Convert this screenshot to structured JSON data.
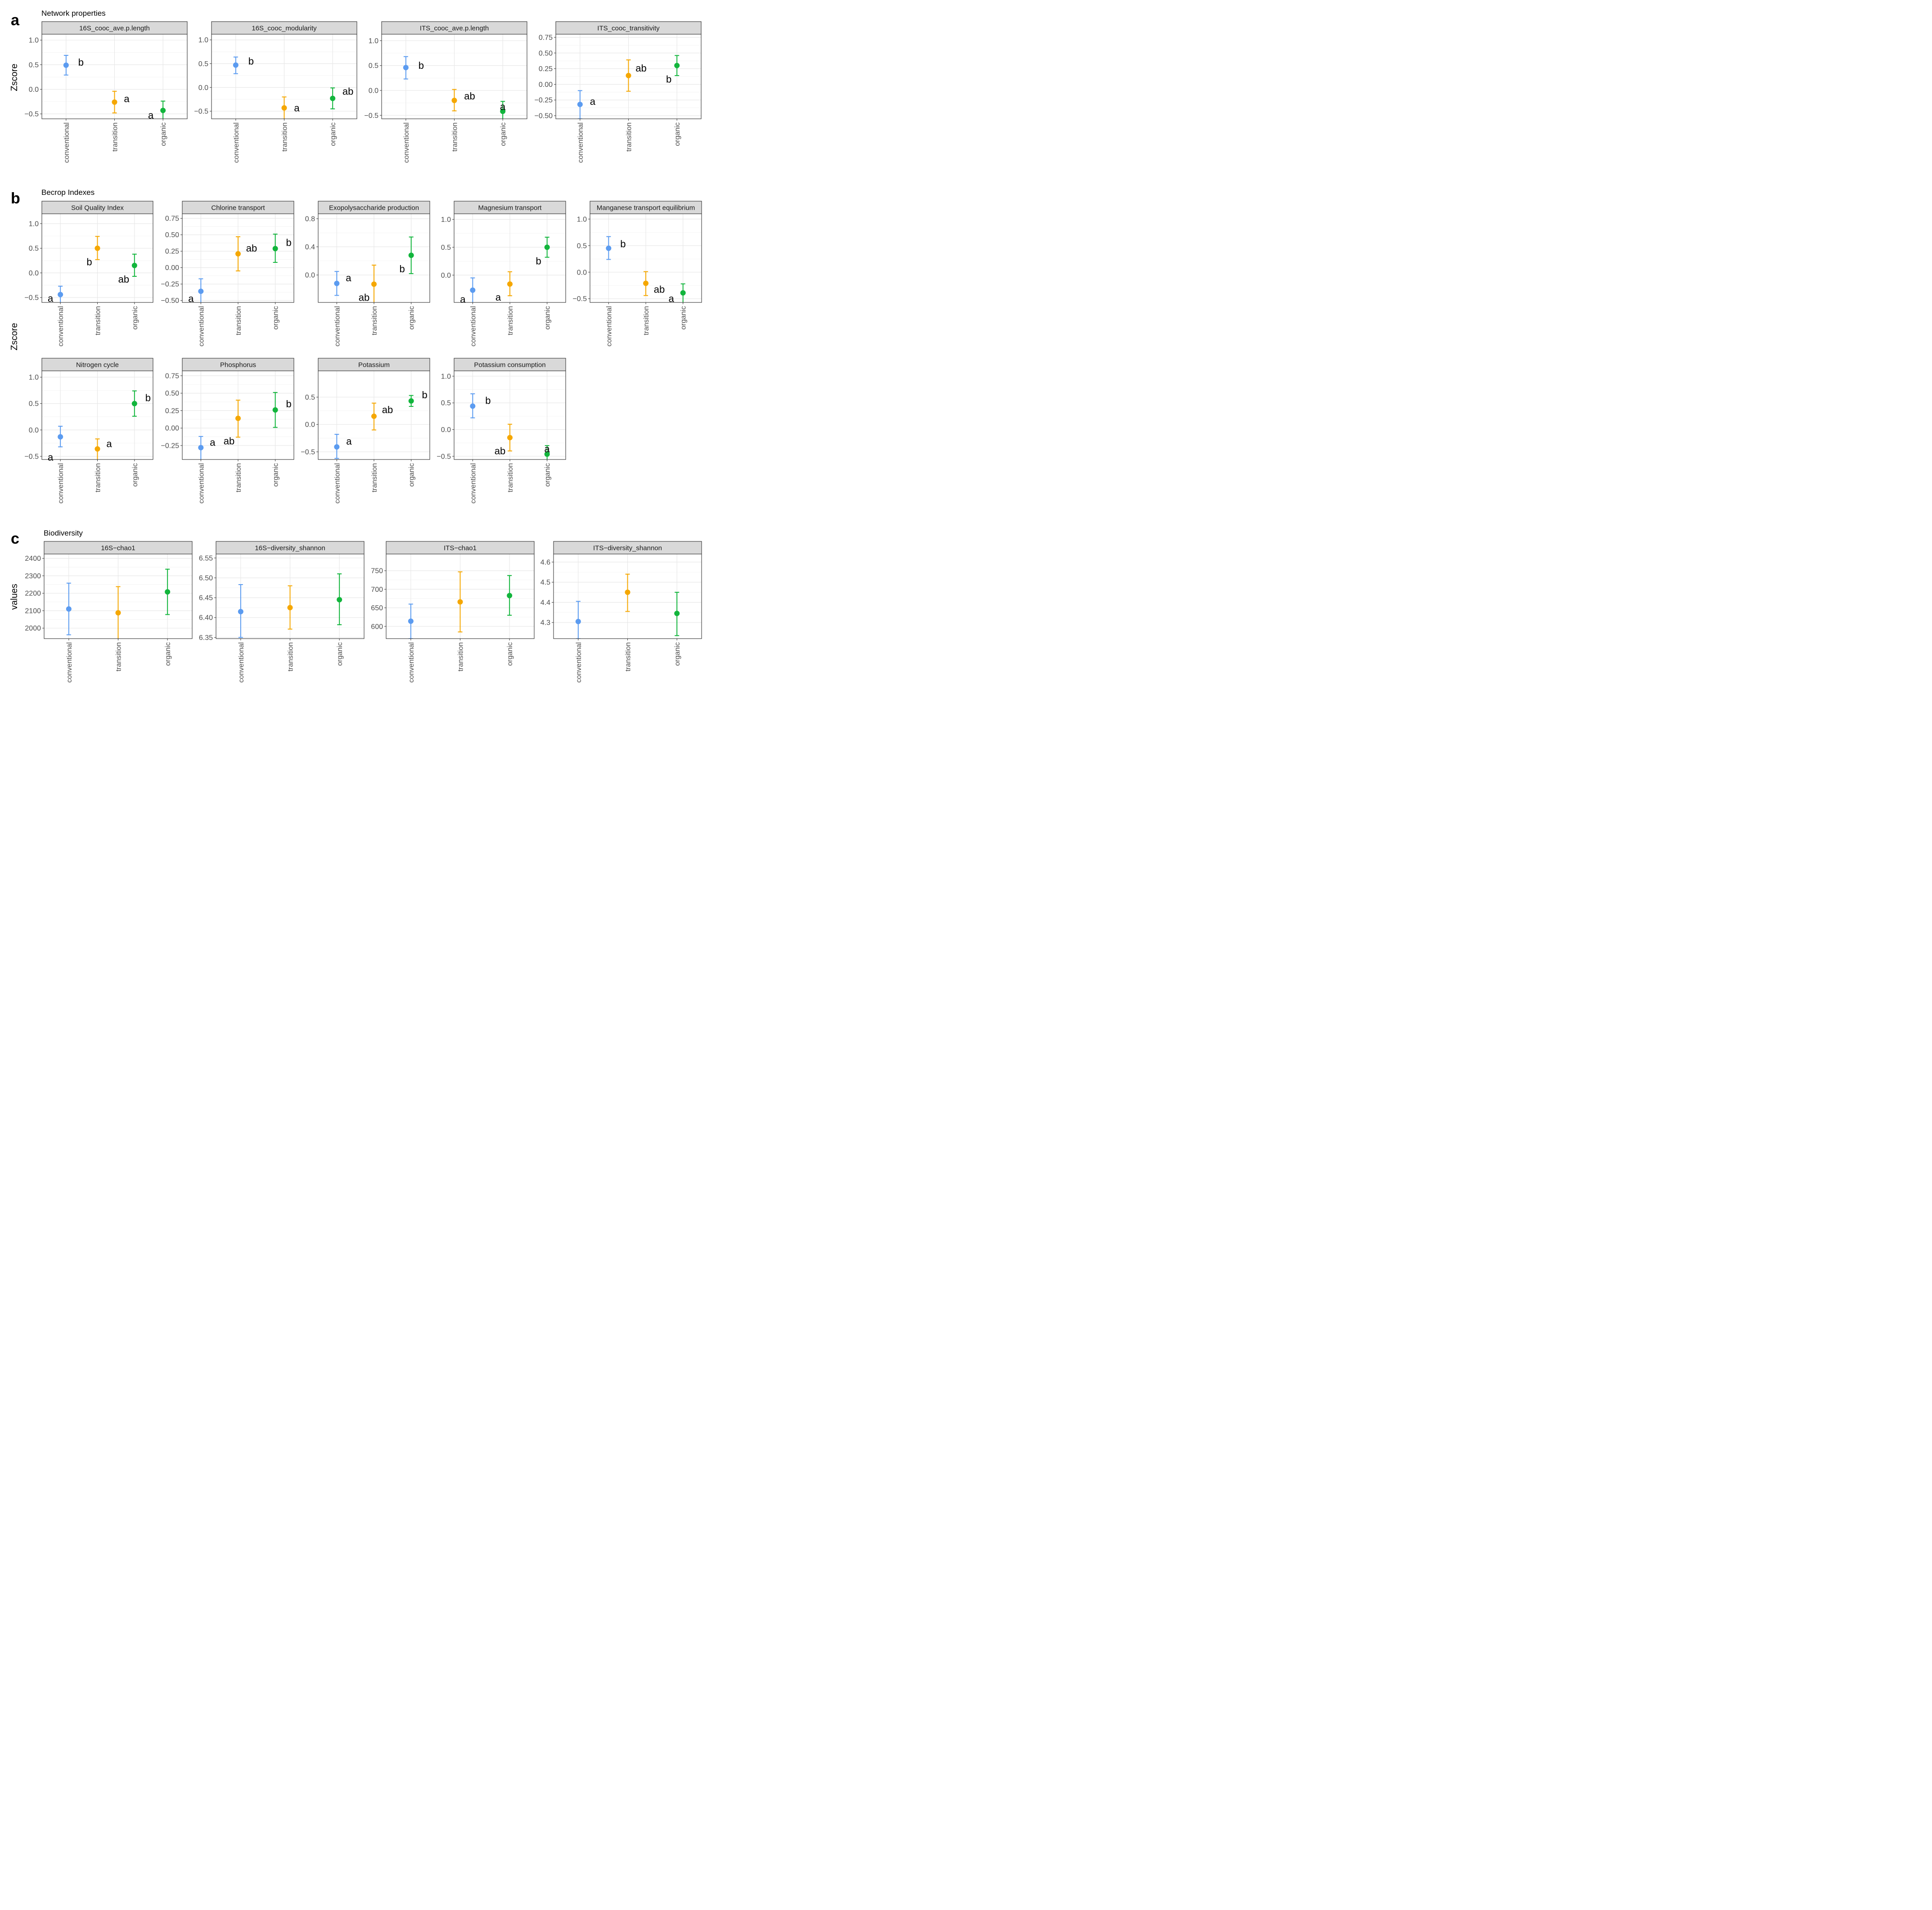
{
  "figure": {
    "colors": {
      "conventional": "#5B9BF0",
      "transition": "#F5A700",
      "organic": "#12B53C"
    },
    "sections": [
      {
        "letter": "a",
        "title": "Network properties",
        "ylabel": "Zscore"
      },
      {
        "letter": "b",
        "title": "Becrop Indexes",
        "ylabel": "Zscore"
      },
      {
        "letter": "c",
        "title": "Biodiversity",
        "ylabel": "values"
      }
    ]
  },
  "chart_data": [
    {
      "type": "scatter",
      "section": "a",
      "title": "16S_cooc_ave.p.length",
      "categories": [
        "conventional",
        "transition",
        "organic"
      ],
      "values": [
        0.49,
        -0.26,
        -0.43
      ],
      "lower": [
        0.29,
        -0.48,
        -0.63
      ],
      "upper": [
        0.69,
        -0.04,
        -0.24
      ],
      "letters": [
        "b",
        "a",
        "a"
      ],
      "ylim": [
        -0.6,
        1.12
      ],
      "ticks": [
        -0.5,
        0.0,
        0.5,
        1.0
      ],
      "tick_labels": [
        "−0.5",
        "0.0",
        "0.5",
        "1.0"
      ]
    },
    {
      "type": "scatter",
      "section": "a",
      "title": "16S_cooc_modularity",
      "categories": [
        "conventional",
        "transition",
        "organic"
      ],
      "values": [
        0.47,
        -0.43,
        -0.23
      ],
      "lower": [
        0.29,
        -0.67,
        -0.45
      ],
      "upper": [
        0.64,
        -0.2,
        -0.01
      ],
      "letters": [
        "b",
        "a",
        "ab"
      ],
      "ylim": [
        -0.66,
        1.12
      ],
      "ticks": [
        -0.5,
        0.0,
        0.5,
        1.0
      ],
      "tick_labels": [
        "−0.5",
        "0.0",
        "0.5",
        "1.0"
      ]
    },
    {
      "type": "scatter",
      "section": "a",
      "title": "ITS_cooc_ave.p.length",
      "categories": [
        "conventional",
        "transition",
        "organic"
      ],
      "values": [
        0.46,
        -0.2,
        -0.42
      ],
      "lower": [
        0.23,
        -0.41,
        -0.62
      ],
      "upper": [
        0.68,
        0.02,
        -0.22
      ],
      "letters": [
        "b",
        "ab",
        "a"
      ],
      "ylim": [
        -0.57,
        1.13
      ],
      "ticks": [
        -0.5,
        0.0,
        0.5,
        1.0
      ],
      "tick_labels": [
        "−0.5",
        "0.0",
        "0.5",
        "1.0"
      ]
    },
    {
      "type": "scatter",
      "section": "a",
      "title": "ITS_cooc_transitivity",
      "categories": [
        "conventional",
        "transition",
        "organic"
      ],
      "values": [
        -0.32,
        0.14,
        0.3
      ],
      "lower": [
        -0.55,
        -0.11,
        0.14
      ],
      "upper": [
        -0.1,
        0.39,
        0.46
      ],
      "letters": [
        "a",
        "ab",
        "b"
      ],
      "ylim": [
        -0.55,
        0.8
      ],
      "ticks": [
        -0.5,
        -0.25,
        0.0,
        0.25,
        0.5,
        0.75
      ],
      "tick_labels": [
        "−0.50",
        "−0.25",
        "0.00",
        "0.25",
        "0.50",
        "0.75"
      ]
    },
    {
      "type": "scatter",
      "section": "b",
      "title": "Soil Quality Index",
      "categories": [
        "conventional",
        "transition",
        "organic"
      ],
      "values": [
        -0.44,
        0.5,
        0.15
      ],
      "lower": [
        -0.66,
        0.27,
        -0.07
      ],
      "upper": [
        -0.27,
        0.74,
        0.38
      ],
      "letters": [
        "a",
        "b",
        "ab"
      ],
      "ylim": [
        -0.6,
        1.2
      ],
      "ticks": [
        -0.5,
        0.0,
        0.5,
        1.0
      ],
      "tick_labels": [
        "−0.5",
        "0.0",
        "0.5",
        "1.0"
      ]
    },
    {
      "type": "scatter",
      "section": "b",
      "title": "Chlorine transport",
      "categories": [
        "conventional",
        "transition",
        "organic"
      ],
      "values": [
        -0.36,
        0.21,
        0.29
      ],
      "lower": [
        -0.55,
        -0.05,
        0.08
      ],
      "upper": [
        -0.17,
        0.47,
        0.51
      ],
      "letters": [
        "a",
        "ab",
        "b"
      ],
      "ylim": [
        -0.53,
        0.82
      ],
      "ticks": [
        -0.5,
        -0.25,
        0.0,
        0.25,
        0.5,
        0.75
      ],
      "tick_labels": [
        "−0.50",
        "−0.25",
        "0.00",
        "0.25",
        "0.50",
        "0.75"
      ]
    },
    {
      "type": "scatter",
      "section": "b",
      "title": "Exopolysaccharide production",
      "categories": [
        "conventional",
        "transition",
        "organic"
      ],
      "values": [
        -0.12,
        -0.13,
        0.28
      ],
      "lower": [
        -0.29,
        -0.44,
        0.02
      ],
      "upper": [
        0.05,
        0.14,
        0.54
      ],
      "letters": [
        "a",
        "ab",
        "b"
      ],
      "ylim": [
        -0.39,
        0.87
      ],
      "ticks": [
        0.0,
        0.4,
        0.8
      ],
      "tick_labels": [
        "0.0",
        "0.4",
        "0.8"
      ]
    },
    {
      "type": "scatter",
      "section": "b",
      "title": "Magnesium transport",
      "categories": [
        "conventional",
        "transition",
        "organic"
      ],
      "values": [
        -0.27,
        -0.16,
        0.5
      ],
      "lower": [
        -0.55,
        -0.37,
        0.32
      ],
      "upper": [
        -0.05,
        0.06,
        0.68
      ],
      "letters": [
        "a",
        "a",
        "b"
      ],
      "ylim": [
        -0.49,
        1.1
      ],
      "ticks": [
        0.0,
        0.5,
        1.0
      ],
      "tick_labels": [
        "0.0",
        "0.5",
        "1.0"
      ]
    },
    {
      "type": "scatter",
      "section": "b",
      "title": "Manganese transport equilibrium",
      "categories": [
        "conventional",
        "transition",
        "organic"
      ],
      "values": [
        0.45,
        -0.21,
        -0.39
      ],
      "lower": [
        0.24,
        -0.44,
        -0.6
      ],
      "upper": [
        0.67,
        0.01,
        -0.22
      ],
      "letters": [
        "b",
        "ab",
        "a"
      ],
      "ylim": [
        -0.57,
        1.1
      ],
      "ticks": [
        -0.5,
        0.0,
        0.5,
        1.0
      ],
      "tick_labels": [
        "−0.5",
        "0.0",
        "0.5",
        "1.0"
      ]
    },
    {
      "type": "scatter",
      "section": "b",
      "title": "Nitrogen cycle",
      "categories": [
        "conventional",
        "transition",
        "organic"
      ],
      "values": [
        -0.13,
        -0.36,
        0.5
      ],
      "lower": [
        -0.32,
        -0.58,
        0.26
      ],
      "upper": [
        0.07,
        -0.17,
        0.74
      ],
      "letters": [
        "a",
        "a",
        "b"
      ],
      "ylim": [
        -0.56,
        1.12
      ],
      "ticks": [
        -0.5,
        0.0,
        0.5,
        1.0
      ],
      "tick_labels": [
        "−0.5",
        "0.0",
        "0.5",
        "1.0"
      ]
    },
    {
      "type": "scatter",
      "section": "b",
      "title": "Phosphorus",
      "categories": [
        "conventional",
        "transition",
        "organic"
      ],
      "values": [
        -0.28,
        0.14,
        0.26
      ],
      "lower": [
        -0.46,
        -0.13,
        0.01
      ],
      "upper": [
        -0.12,
        0.4,
        0.51
      ],
      "letters": [
        "a",
        "ab",
        "b"
      ],
      "ylim": [
        -0.45,
        0.82
      ],
      "ticks": [
        -0.25,
        0.0,
        0.25,
        0.5,
        0.75
      ],
      "tick_labels": [
        "−0.25",
        "0.00",
        "0.25",
        "0.50",
        "0.75"
      ]
    },
    {
      "type": "scatter",
      "section": "b",
      "title": "Potassium",
      "categories": [
        "conventional",
        "transition",
        "organic"
      ],
      "values": [
        -0.41,
        0.15,
        0.43
      ],
      "lower": [
        -0.62,
        -0.1,
        0.33
      ],
      "upper": [
        -0.18,
        0.39,
        0.53
      ],
      "letters": [
        "a",
        "ab",
        "b"
      ],
      "ylim": [
        -0.64,
        0.98
      ],
      "ticks": [
        -0.5,
        0.0,
        0.5
      ],
      "tick_labels": [
        "−0.5",
        "0.0",
        "0.5"
      ]
    },
    {
      "type": "scatter",
      "section": "b",
      "title": "Potassium consumption",
      "categories": [
        "conventional",
        "transition",
        "organic"
      ],
      "values": [
        0.44,
        -0.15,
        -0.46
      ],
      "lower": [
        0.22,
        -0.4,
        -0.62
      ],
      "upper": [
        0.67,
        0.1,
        -0.3
      ],
      "letters": [
        "b",
        "ab",
        "a"
      ],
      "ylim": [
        -0.56,
        1.1
      ],
      "ticks": [
        -0.5,
        0.0,
        0.5,
        1.0
      ],
      "tick_labels": [
        "−0.5",
        "0.0",
        "0.5",
        "1.0"
      ]
    },
    {
      "type": "scatter",
      "section": "c",
      "title": "16S−chao1",
      "categories": [
        "conventional",
        "transition",
        "organic"
      ],
      "values": [
        2110,
        2088,
        2208
      ],
      "lower": [
        1962,
        1938,
        2078
      ],
      "upper": [
        2258,
        2238,
        2338
      ],
      "letters": [
        "",
        "",
        ""
      ],
      "ylim": [
        1940,
        2425
      ],
      "ticks": [
        2000,
        2100,
        2200,
        2300,
        2400
      ],
      "tick_labels": [
        "2000",
        "2100",
        "2200",
        "2300",
        "2400"
      ]
    },
    {
      "type": "scatter",
      "section": "c",
      "title": "16S−diversity_shannon",
      "categories": [
        "conventional",
        "transition",
        "organic"
      ],
      "values": [
        6.415,
        6.425,
        6.445
      ],
      "lower": [
        6.35,
        6.371,
        6.382
      ],
      "upper": [
        6.483,
        6.48,
        6.51
      ],
      "letters": [
        "",
        "",
        ""
      ],
      "ylim": [
        6.347,
        6.56
      ],
      "ticks": [
        6.35,
        6.4,
        6.45,
        6.5,
        6.55
      ],
      "tick_labels": [
        "6.35",
        "6.40",
        "6.45",
        "6.50",
        "6.55"
      ]
    },
    {
      "type": "scatter",
      "section": "c",
      "title": "ITS−chao1",
      "categories": [
        "conventional",
        "transition",
        "organic"
      ],
      "values": [
        614,
        666,
        683
      ],
      "lower": [
        567,
        585,
        630
      ],
      "upper": [
        660,
        747,
        737
      ],
      "letters": [
        "",
        "",
        ""
      ],
      "ylim": [
        567,
        795
      ],
      "ticks": [
        600,
        650,
        700,
        750
      ],
      "tick_labels": [
        "600",
        "650",
        "700",
        "750"
      ]
    },
    {
      "type": "scatter",
      "section": "c",
      "title": "ITS−diversity_shannon",
      "categories": [
        "conventional",
        "transition",
        "organic"
      ],
      "values": [
        4.305,
        4.45,
        4.345
      ],
      "lower": [
        4.22,
        4.355,
        4.235
      ],
      "upper": [
        4.405,
        4.54,
        4.45
      ],
      "letters": [
        "",
        "",
        ""
      ],
      "ylim": [
        4.22,
        4.64
      ],
      "ticks": [
        4.3,
        4.4,
        4.5,
        4.6
      ],
      "tick_labels": [
        "4.3",
        "4.4",
        "4.5",
        "4.6"
      ]
    }
  ]
}
